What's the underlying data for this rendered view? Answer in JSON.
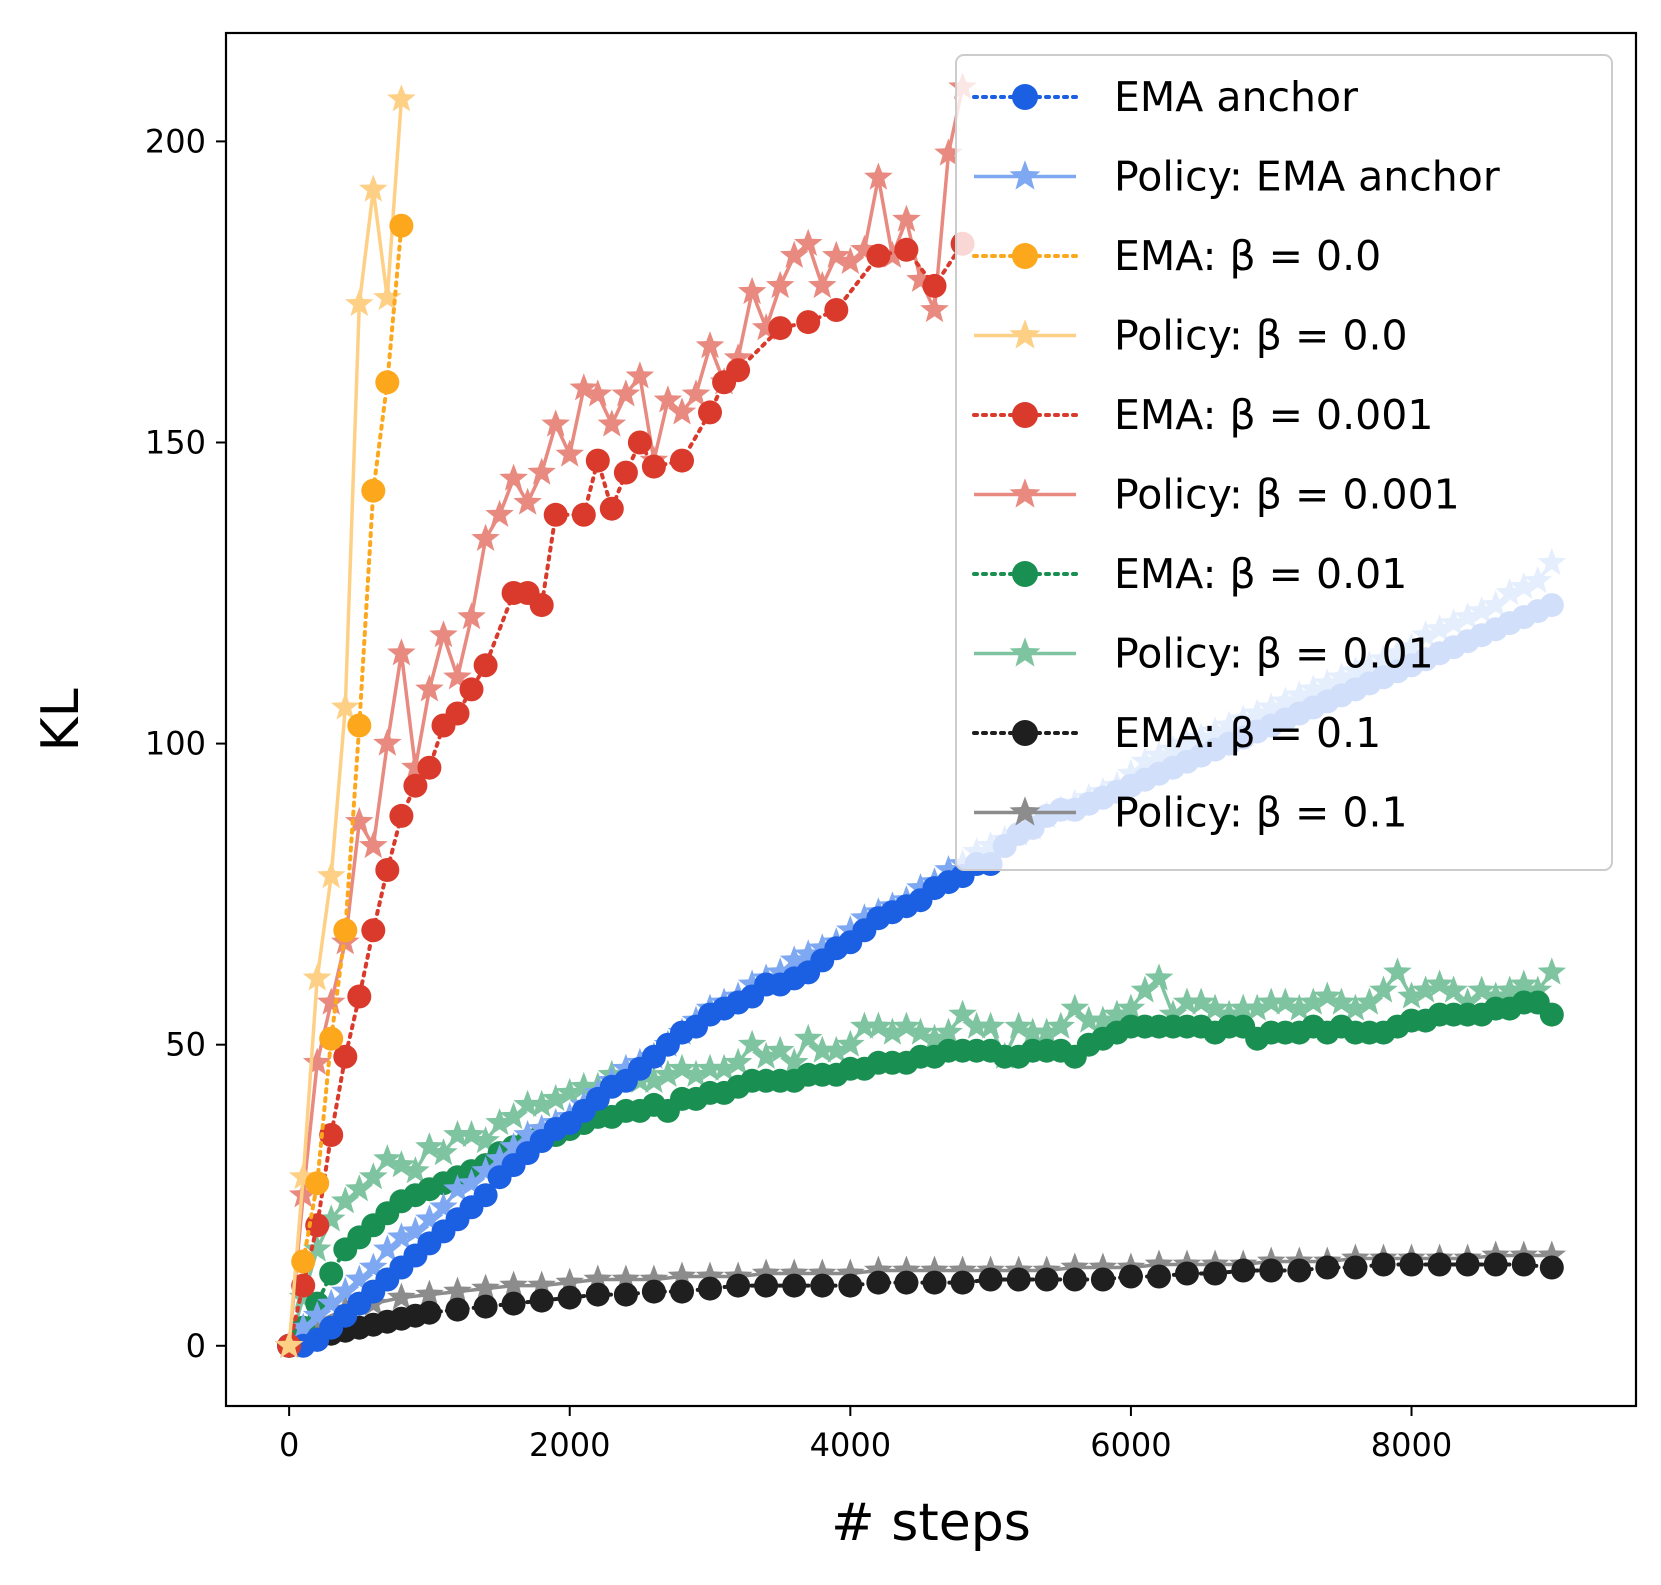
{
  "chart_data": {
    "type": "line",
    "title": "",
    "xlabel": "# steps",
    "ylabel": "KL",
    "xlim": [
      -450,
      9600
    ],
    "ylim": [
      -10,
      218
    ],
    "xticks": [
      0,
      2000,
      4000,
      6000,
      8000
    ],
    "yticks": [
      0,
      50,
      100,
      150,
      200
    ],
    "grid": false,
    "legend_position": "top-right",
    "series": [
      {
        "name": "Policy: β = 0.1",
        "style": "solid",
        "marker": "star",
        "color": "#8c8c8c",
        "x": [
          0,
          200,
          400,
          600,
          800,
          1000,
          1200,
          1400,
          1600,
          1800,
          2000,
          2200,
          2400,
          2600,
          2800,
          3000,
          3200,
          3400,
          3600,
          3800,
          4000,
          4200,
          4400,
          4600,
          4800,
          5000,
          5200,
          5400,
          5600,
          5800,
          6000,
          6200,
          6400,
          6600,
          6800,
          7000,
          7200,
          7400,
          7600,
          7800,
          8000,
          8200,
          8400,
          8600,
          8800,
          9000
        ],
        "y": [
          0,
          4,
          6,
          7,
          8,
          8.5,
          9,
          9.5,
          10,
          10,
          10.5,
          11,
          11,
          11,
          11.5,
          11.5,
          11.5,
          12,
          12,
          12,
          12,
          12.5,
          12.5,
          12.5,
          12.5,
          12.5,
          12.5,
          12.5,
          13,
          13,
          13,
          13.5,
          13.5,
          13.5,
          13.5,
          14,
          14,
          14,
          14.5,
          14.5,
          14.5,
          14.5,
          14.5,
          15,
          15,
          15
        ]
      },
      {
        "name": "EMA: β = 0.1",
        "style": "dotted",
        "marker": "circle",
        "color": "#1f1f1f",
        "x": [
          0,
          100,
          200,
          300,
          400,
          500,
          600,
          700,
          800,
          900,
          1000,
          1200,
          1400,
          1600,
          1800,
          2000,
          2200,
          2400,
          2600,
          2800,
          3000,
          3200,
          3400,
          3600,
          3800,
          4000,
          4200,
          4400,
          4600,
          4800,
          5000,
          5200,
          5400,
          5600,
          5800,
          6000,
          6200,
          6400,
          6600,
          6800,
          7000,
          7200,
          7400,
          7600,
          7800,
          8000,
          8200,
          8400,
          8600,
          8800,
          9000
        ],
        "y": [
          0,
          0.5,
          1,
          2,
          2.5,
          3,
          3.5,
          4,
          4.5,
          5,
          5.5,
          6,
          6.5,
          7,
          7.5,
          8,
          8.5,
          8.5,
          9,
          9,
          9.5,
          10,
          10,
          10,
          10,
          10,
          10.5,
          10.5,
          10.5,
          10.5,
          11,
          11,
          11,
          11,
          11,
          11.5,
          11.5,
          12,
          12,
          12.5,
          12.5,
          12.5,
          13,
          13,
          13.5,
          13.5,
          13.5,
          13.5,
          13.5,
          13.5,
          13
        ]
      },
      {
        "name": "Policy: β = 0.01",
        "style": "solid",
        "marker": "star",
        "color": "#7fc4a0",
        "x": [
          0,
          100,
          200,
          300,
          400,
          500,
          600,
          700,
          800,
          900,
          1000,
          1100,
          1200,
          1300,
          1400,
          1500,
          1600,
          1700,
          1800,
          1900,
          2000,
          2100,
          2200,
          2300,
          2400,
          2500,
          2600,
          2700,
          2800,
          2900,
          3000,
          3100,
          3200,
          3300,
          3400,
          3500,
          3600,
          3700,
          3800,
          3900,
          4000,
          4100,
          4200,
          4300,
          4400,
          4500,
          4600,
          4700,
          4800,
          4900,
          5000,
          5100,
          5200,
          5300,
          5400,
          5500,
          5600,
          5700,
          5800,
          5900,
          6000,
          6100,
          6200,
          6300,
          6400,
          6500,
          6600,
          6700,
          6800,
          6900,
          7000,
          7100,
          7200,
          7300,
          7400,
          7500,
          7600,
          7700,
          7800,
          7900,
          8000,
          8100,
          8200,
          8300,
          8400,
          8500,
          8600,
          8700,
          8800,
          8900,
          9000
        ],
        "y": [
          0,
          8,
          16,
          21,
          24,
          26,
          28,
          31,
          30,
          29,
          33,
          32,
          35,
          35,
          34,
          37,
          38,
          40,
          40,
          41,
          42,
          43,
          43,
          45,
          45,
          44,
          44,
          45,
          46,
          45,
          46,
          46,
          47,
          50,
          48,
          49,
          47,
          51,
          49,
          49,
          50,
          53,
          53,
          52,
          53,
          52,
          51,
          52,
          55,
          53,
          53,
          48,
          53,
          52,
          52,
          53,
          56,
          54,
          54,
          55,
          56,
          59,
          61,
          55,
          57,
          57,
          56,
          55,
          56,
          56,
          57,
          57,
          56,
          57,
          58,
          57,
          56,
          57,
          59,
          62,
          58,
          59,
          60,
          59,
          57,
          59,
          58,
          59,
          60,
          59,
          62
        ]
      },
      {
        "name": "EMA: β = 0.01",
        "style": "dotted",
        "marker": "circle",
        "color": "#1a8f52",
        "x": [
          0,
          100,
          200,
          300,
          400,
          500,
          600,
          700,
          800,
          900,
          1000,
          1100,
          1200,
          1300,
          1400,
          1500,
          1600,
          1700,
          1800,
          1900,
          2000,
          2100,
          2200,
          2300,
          2400,
          2500,
          2600,
          2700,
          2800,
          2900,
          3000,
          3100,
          3200,
          3300,
          3400,
          3500,
          3600,
          3700,
          3800,
          3900,
          4000,
          4100,
          4200,
          4300,
          4400,
          4500,
          4600,
          4700,
          4800,
          4900,
          5000,
          5100,
          5200,
          5300,
          5400,
          5500,
          5600,
          5700,
          5800,
          5900,
          6000,
          6100,
          6200,
          6300,
          6400,
          6500,
          6600,
          6700,
          6800,
          6900,
          7000,
          7100,
          7200,
          7300,
          7400,
          7500,
          7600,
          7700,
          7800,
          7900,
          8000,
          8100,
          8200,
          8300,
          8400,
          8500,
          8600,
          8700,
          8800,
          8900,
          9000
        ],
        "y": [
          0,
          3,
          7,
          12,
          16,
          18,
          20,
          22,
          24,
          25,
          26,
          27,
          28,
          29,
          30,
          32,
          33,
          34,
          35,
          35,
          36,
          37,
          38,
          38,
          39,
          39,
          40,
          39,
          41,
          41,
          42,
          42,
          43,
          44,
          44,
          44,
          44,
          45,
          45,
          45,
          46,
          46,
          47,
          47,
          47,
          48,
          48,
          49,
          49,
          49,
          49,
          48,
          48,
          49,
          49,
          49,
          48,
          50,
          51,
          52,
          53,
          53,
          53,
          53,
          53,
          53,
          52,
          53,
          53,
          51,
          52,
          52,
          52,
          53,
          52,
          53,
          52,
          52,
          52,
          53,
          54,
          54,
          55,
          55,
          55,
          55,
          56,
          56,
          57,
          57,
          55
        ]
      },
      {
        "name": "Policy: EMA anchor",
        "style": "solid",
        "marker": "star",
        "color": "#7ea9f2",
        "x": [
          0,
          100,
          200,
          300,
          400,
          500,
          600,
          700,
          800,
          900,
          1000,
          1100,
          1200,
          1300,
          1400,
          1500,
          1600,
          1700,
          1800,
          1900,
          2000,
          2100,
          2200,
          2300,
          2400,
          2500,
          2600,
          2700,
          2800,
          2900,
          3000,
          3100,
          3200,
          3300,
          3400,
          3500,
          3600,
          3700,
          3800,
          3900,
          4000,
          4100,
          4200,
          4300,
          4400,
          4500,
          4600,
          4700,
          4800,
          4900,
          5000,
          5100,
          5200,
          5300,
          5400,
          5500,
          5600,
          5700,
          5800,
          5900,
          6000,
          6100,
          6200,
          6300,
          6400,
          6500,
          6600,
          6700,
          6800,
          6900,
          7000,
          7100,
          7200,
          7300,
          7400,
          7500,
          7600,
          7700,
          7800,
          7900,
          8000,
          8100,
          8200,
          8300,
          8400,
          8500,
          8600,
          8700,
          8800,
          8900,
          9000
        ],
        "y": [
          0,
          3,
          5,
          7,
          9,
          11,
          13,
          16,
          18,
          19,
          21,
          23,
          26,
          27,
          29,
          31,
          33,
          35,
          36,
          37,
          38,
          40,
          42,
          44,
          46,
          47,
          48,
          50,
          52,
          54,
          56,
          57,
          58,
          60,
          61,
          62,
          64,
          65,
          66,
          67,
          69,
          71,
          72,
          73,
          74,
          76,
          77,
          79,
          80,
          82,
          83,
          84,
          85,
          86,
          88,
          89,
          90,
          91,
          92,
          93,
          95,
          97,
          98,
          99,
          100,
          101,
          102,
          103,
          104,
          105,
          106,
          107,
          108,
          109,
          110,
          111,
          112,
          113,
          114,
          115,
          116,
          118,
          119,
          120,
          121,
          122,
          123,
          125,
          126,
          127,
          130
        ]
      },
      {
        "name": "EMA anchor",
        "style": "dotted",
        "marker": "circle",
        "color": "#1b5fe3",
        "x": [
          0,
          100,
          200,
          300,
          400,
          500,
          600,
          700,
          800,
          900,
          1000,
          1100,
          1200,
          1300,
          1400,
          1500,
          1600,
          1700,
          1800,
          1900,
          2000,
          2100,
          2200,
          2300,
          2400,
          2500,
          2600,
          2700,
          2800,
          2900,
          3000,
          3100,
          3200,
          3300,
          3400,
          3500,
          3600,
          3700,
          3800,
          3900,
          4000,
          4100,
          4200,
          4300,
          4400,
          4500,
          4600,
          4700,
          4800,
          4900,
          5000,
          5100,
          5200,
          5300,
          5400,
          5500,
          5600,
          5700,
          5800,
          5900,
          6000,
          6100,
          6200,
          6300,
          6400,
          6500,
          6600,
          6700,
          6800,
          6900,
          7000,
          7100,
          7200,
          7300,
          7400,
          7500,
          7600,
          7700,
          7800,
          7900,
          8000,
          8100,
          8200,
          8300,
          8400,
          8500,
          8600,
          8700,
          8800,
          8900,
          9000
        ],
        "y": [
          0,
          0,
          1,
          3,
          5,
          7,
          9,
          11,
          13,
          15,
          17,
          19,
          21,
          23,
          25,
          28,
          30,
          32,
          34,
          36,
          37,
          39,
          41,
          43,
          44,
          46,
          48,
          50,
          52,
          53,
          55,
          56,
          57,
          58,
          60,
          60,
          61,
          62,
          64,
          66,
          67,
          69,
          71,
          72,
          73,
          74,
          76,
          77,
          78,
          80,
          80,
          83,
          85,
          86,
          88,
          89,
          89,
          90,
          91,
          92,
          93,
          94,
          95,
          96,
          97,
          98,
          99,
          100,
          101,
          102,
          103,
          104,
          105,
          106,
          107,
          108,
          109,
          110,
          111,
          112,
          113,
          114,
          115,
          116,
          117,
          118,
          119,
          120,
          121,
          122,
          123
        ]
      },
      {
        "name": "Policy: β = 0.001",
        "style": "solid",
        "marker": "star",
        "color": "#e88a80",
        "x": [
          0,
          100,
          200,
          300,
          400,
          500,
          600,
          700,
          800,
          900,
          1000,
          1100,
          1200,
          1300,
          1400,
          1500,
          1600,
          1700,
          1800,
          1900,
          2000,
          2100,
          2200,
          2300,
          2400,
          2500,
          2600,
          2700,
          2800,
          2900,
          3000,
          3100,
          3200,
          3300,
          3400,
          3500,
          3600,
          3700,
          3800,
          3900,
          4000,
          4100,
          4200,
          4300,
          4400,
          4500,
          4600,
          4700,
          4800
        ],
        "y": [
          0,
          25,
          47,
          57,
          67,
          87,
          83,
          100,
          115,
          96,
          109,
          118,
          111,
          121,
          134,
          138,
          144,
          140,
          145,
          153,
          148,
          159,
          158,
          153,
          158,
          161,
          147,
          157,
          155,
          158,
          166,
          160,
          164,
          175,
          169,
          176,
          181,
          183,
          176,
          181,
          180,
          182,
          194,
          181,
          187,
          177,
          172,
          198,
          209
        ]
      },
      {
        "name": "EMA: β = 0.001",
        "style": "dotted",
        "marker": "circle",
        "color": "#d93a2b",
        "x": [
          0,
          100,
          200,
          300,
          400,
          500,
          600,
          700,
          800,
          900,
          1000,
          1100,
          1200,
          1300,
          1400,
          1600,
          1700,
          1800,
          1900,
          2100,
          2200,
          2300,
          2400,
          2500,
          2600,
          2800,
          3000,
          3100,
          3200,
          3500,
          3700,
          3900,
          4200,
          4400,
          4600,
          4800
        ],
        "y": [
          0,
          10,
          20,
          35,
          48,
          58,
          69,
          79,
          88,
          93,
          96,
          103,
          105,
          109,
          113,
          125,
          125,
          123,
          138,
          138,
          147,
          139,
          145,
          150,
          146,
          147,
          155,
          160,
          162,
          169,
          170,
          172,
          181,
          182,
          176,
          183
        ]
      },
      {
        "name": "Policy: β = 0.0",
        "style": "solid",
        "marker": "star",
        "color": "#fdd085",
        "x": [
          0,
          100,
          200,
          300,
          400,
          500,
          600,
          700,
          800
        ],
        "y": [
          0,
          28,
          61,
          78,
          106,
          173,
          192,
          174,
          207
        ]
      },
      {
        "name": "EMA: β = 0.0",
        "style": "dotted",
        "marker": "circle",
        "color": "#fca71c",
        "x": [
          100,
          200,
          300,
          400,
          500,
          600,
          700,
          800
        ],
        "y": [
          14,
          27,
          51,
          69,
          103,
          142,
          160,
          186
        ]
      }
    ],
    "legend_order": [
      "EMA anchor",
      "Policy: EMA anchor",
      "EMA: β = 0.0",
      "Policy: β = 0.0",
      "EMA: β = 0.001",
      "Policy: β = 0.001",
      "EMA: β = 0.01",
      "Policy: β = 0.01",
      "EMA: β = 0.1",
      "Policy: β = 0.1"
    ]
  }
}
